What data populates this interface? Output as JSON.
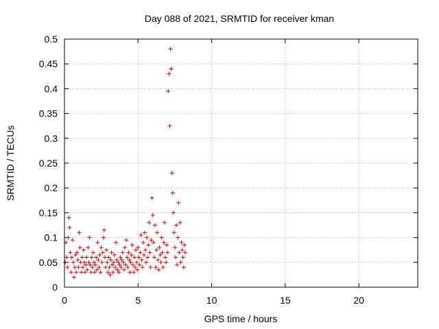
{
  "chart_data": {
    "type": "scatter",
    "title": "Day 088 of 2021, SRMTID for receiver kman",
    "xlabel": "GPS time / hours",
    "ylabel": "SRMTID / TECUs",
    "xlim": [
      0,
      24
    ],
    "ylim": [
      0,
      0.5
    ],
    "x_ticks": [
      "0",
      "5",
      "10",
      "15",
      "20"
    ],
    "y_ticks": [
      "0",
      "0.05",
      "0.1",
      "0.15",
      "0.2",
      "0.25",
      "0.3",
      "0.35",
      "0.4",
      "0.45",
      "0.5"
    ],
    "grid": true,
    "marker": "plus",
    "color": "#e00000",
    "series": [
      {
        "name": "SRMTID",
        "points": [
          [
            0.05,
            0.05
          ],
          [
            0.1,
            0.09
          ],
          [
            0.15,
            0.06
          ],
          [
            0.2,
            0.04
          ],
          [
            0.25,
            0.1
          ],
          [
            0.3,
            0.14
          ],
          [
            0.35,
            0.12
          ],
          [
            0.4,
            0.07
          ],
          [
            0.45,
            0.03
          ],
          [
            0.5,
            0.06
          ],
          [
            0.55,
            0.095
          ],
          [
            0.6,
            0.05
          ],
          [
            0.65,
            0.02
          ],
          [
            0.7,
            0.04
          ],
          [
            0.75,
            0.065
          ],
          [
            0.8,
            0.03
          ],
          [
            0.85,
            0.07
          ],
          [
            0.9,
            0.055
          ],
          [
            0.95,
            0.04
          ],
          [
            1.0,
            0.11
          ],
          [
            1.05,
            0.08
          ],
          [
            1.1,
            0.05
          ],
          [
            1.15,
            0.03
          ],
          [
            1.2,
            0.06
          ],
          [
            1.25,
            0.04
          ],
          [
            1.3,
            0.075
          ],
          [
            1.35,
            0.05
          ],
          [
            1.4,
            0.03
          ],
          [
            1.45,
            0.045
          ],
          [
            1.5,
            0.06
          ],
          [
            1.55,
            0.035
          ],
          [
            1.6,
            0.08
          ],
          [
            1.65,
            0.05
          ],
          [
            1.7,
            0.1
          ],
          [
            1.75,
            0.045
          ],
          [
            1.8,
            0.03
          ],
          [
            1.85,
            0.06
          ],
          [
            1.9,
            0.04
          ],
          [
            1.95,
            0.07
          ],
          [
            2.0,
            0.05
          ],
          [
            2.05,
            0.03
          ],
          [
            2.1,
            0.045
          ],
          [
            2.15,
            0.06
          ],
          [
            2.2,
            0.035
          ],
          [
            2.25,
            0.09
          ],
          [
            2.3,
            0.055
          ],
          [
            2.35,
            0.04
          ],
          [
            2.4,
            0.065
          ],
          [
            2.45,
            0.03
          ],
          [
            2.5,
            0.08
          ],
          [
            2.55,
            0.05
          ],
          [
            2.6,
            0.07
          ],
          [
            2.65,
            0.1
          ],
          [
            2.7,
            0.115
          ],
          [
            2.75,
            0.06
          ],
          [
            2.8,
            0.04
          ],
          [
            2.85,
            0.075
          ],
          [
            2.9,
            0.05
          ],
          [
            2.95,
            0.03
          ],
          [
            3.0,
            0.06
          ],
          [
            3.05,
            0.04
          ],
          [
            3.1,
            0.025
          ],
          [
            3.15,
            0.055
          ],
          [
            3.2,
            0.07
          ],
          [
            3.25,
            0.045
          ],
          [
            3.3,
            0.03
          ],
          [
            3.35,
            0.05
          ],
          [
            3.4,
            0.065
          ],
          [
            3.45,
            0.04
          ],
          [
            3.5,
            0.09
          ],
          [
            3.55,
            0.055
          ],
          [
            3.6,
            0.035
          ],
          [
            3.65,
            0.05
          ],
          [
            3.7,
            0.03
          ],
          [
            3.75,
            0.045
          ],
          [
            3.8,
            0.06
          ],
          [
            3.85,
            0.04
          ],
          [
            3.9,
            0.055
          ],
          [
            3.95,
            0.07
          ],
          [
            4.0,
            0.05
          ],
          [
            4.05,
            0.035
          ],
          [
            4.1,
            0.08
          ],
          [
            4.15,
            0.045
          ],
          [
            4.2,
            0.095
          ],
          [
            4.25,
            0.06
          ],
          [
            4.3,
            0.04
          ],
          [
            4.35,
            0.07
          ],
          [
            4.4,
            0.055
          ],
          [
            4.45,
            0.03
          ],
          [
            4.5,
            0.05
          ],
          [
            4.55,
            0.065
          ],
          [
            4.6,
            0.085
          ],
          [
            4.65,
            0.045
          ],
          [
            4.7,
            0.03
          ],
          [
            4.75,
            0.06
          ],
          [
            4.8,
            0.04
          ],
          [
            4.85,
            0.075
          ],
          [
            4.9,
            0.05
          ],
          [
            4.95,
            0.035
          ],
          [
            5.0,
            0.08
          ],
          [
            5.05,
            0.06
          ],
          [
            5.1,
            0.045
          ],
          [
            5.15,
            0.07
          ],
          [
            5.2,
            0.105
          ],
          [
            5.25,
            0.055
          ],
          [
            5.3,
            0.04
          ],
          [
            5.35,
            0.09
          ],
          [
            5.4,
            0.065
          ],
          [
            5.45,
            0.11
          ],
          [
            5.5,
            0.075
          ],
          [
            5.55,
            0.05
          ],
          [
            5.6,
            0.1
          ],
          [
            5.65,
            0.06
          ],
          [
            5.7,
            0.085
          ],
          [
            5.75,
            0.13
          ],
          [
            5.8,
            0.07
          ],
          [
            5.85,
            0.04
          ],
          [
            5.9,
            0.095
          ],
          [
            5.95,
            0.18
          ],
          [
            6.0,
            0.145
          ],
          [
            6.05,
            0.09
          ],
          [
            6.1,
            0.06
          ],
          [
            6.15,
            0.125
          ],
          [
            6.2,
            0.04
          ],
          [
            6.25,
            0.075
          ],
          [
            6.3,
            0.11
          ],
          [
            6.35,
            0.055
          ],
          [
            6.4,
            0.035
          ],
          [
            6.45,
            0.08
          ],
          [
            6.5,
            0.065
          ],
          [
            6.55,
            0.05
          ],
          [
            6.6,
            0.1
          ],
          [
            6.65,
            0.07
          ],
          [
            6.7,
            0.04
          ],
          [
            6.75,
            0.09
          ],
          [
            6.8,
            0.13
          ],
          [
            6.85,
            0.06
          ],
          [
            6.9,
            0.05
          ],
          [
            6.95,
            0.085
          ],
          [
            7.0,
            0.07
          ],
          [
            7.05,
            0.395
          ],
          [
            7.1,
            0.43
          ],
          [
            7.15,
            0.325
          ],
          [
            7.2,
            0.48
          ],
          [
            7.25,
            0.44
          ],
          [
            7.3,
            0.23
          ],
          [
            7.35,
            0.19
          ],
          [
            7.4,
            0.15
          ],
          [
            7.45,
            0.11
          ],
          [
            7.5,
            0.08
          ],
          [
            7.55,
            0.06
          ],
          [
            7.6,
            0.125
          ],
          [
            7.65,
            0.045
          ],
          [
            7.7,
            0.1
          ],
          [
            7.75,
            0.17
          ],
          [
            7.8,
            0.07
          ],
          [
            7.85,
            0.13
          ],
          [
            7.9,
            0.05
          ],
          [
            7.95,
            0.09
          ],
          [
            8.0,
            0.075
          ],
          [
            8.05,
            0.06
          ],
          [
            8.1,
            0.04
          ],
          [
            8.15,
            0.085
          ],
          [
            8.2,
            0.07
          ]
        ]
      }
    ]
  }
}
